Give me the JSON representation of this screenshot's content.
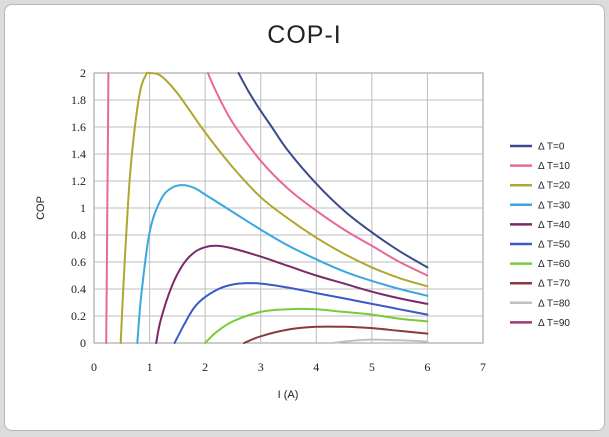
{
  "chart_data": {
    "type": "line",
    "title": "COP-I",
    "xlabel": "I (A)",
    "ylabel": "COP",
    "xlim": [
      0,
      7
    ],
    "ylim": [
      0,
      2
    ],
    "x_ticks": [
      "0",
      "1",
      "2",
      "3",
      "4",
      "5",
      "6",
      "7"
    ],
    "y_ticks": [
      "0",
      "0.2",
      "0.4",
      "0.6",
      "0.8",
      "1",
      "1.2",
      "1.4",
      "1.6",
      "1.8",
      "2"
    ],
    "grid": true,
    "legend_position": "right",
    "series": [
      {
        "name": "Δ T=0",
        "color": "#3a4a8c",
        "x": [
          2.6,
          2.8,
          3.0,
          3.2,
          3.5,
          4.0,
          4.5,
          5.0,
          5.5,
          6.0
        ],
        "y": [
          2.0,
          1.85,
          1.72,
          1.6,
          1.42,
          1.18,
          0.98,
          0.82,
          0.68,
          0.56
        ]
      },
      {
        "name": "Δ T=10",
        "color": "#e8689a",
        "x": [
          0.22,
          0.23,
          0.24,
          0.25,
          0.26
        ],
        "y": [
          0.0,
          0.5,
          1.0,
          1.5,
          2.0
        ]
      },
      {
        "name": "Δ T=10",
        "color": "#e8689a",
        "x": [
          2.05,
          2.2,
          2.5,
          3.0,
          3.5,
          4.0,
          4.5,
          5.0,
          5.5,
          6.0
        ],
        "y": [
          2.0,
          1.86,
          1.63,
          1.35,
          1.14,
          0.98,
          0.84,
          0.72,
          0.6,
          0.5
        ]
      },
      {
        "name": "Δ T=20",
        "color": "#b0a630",
        "x": [
          0.48,
          0.52,
          0.58,
          0.65,
          0.75,
          0.85,
          0.95
        ],
        "y": [
          0.0,
          0.35,
          0.8,
          1.25,
          1.65,
          1.9,
          2.0
        ]
      },
      {
        "name": "Δ T=20",
        "color": "#b0a630",
        "x": [
          0.95,
          1.0,
          1.2,
          1.5,
          2.0,
          2.5,
          3.0,
          3.5,
          4.0,
          4.5,
          5.0,
          5.5,
          6.0
        ],
        "y": [
          2.0,
          2.02,
          1.98,
          1.85,
          1.56,
          1.3,
          1.08,
          0.92,
          0.78,
          0.66,
          0.56,
          0.48,
          0.42
        ]
      },
      {
        "name": "Δ T=30",
        "color": "#3aa8e0",
        "x": [
          0.78,
          0.85,
          1.0,
          1.2,
          1.4,
          1.6,
          1.8,
          2.0,
          2.5,
          3.0,
          3.5,
          4.0,
          4.5,
          5.0,
          5.5,
          6.0
        ],
        "y": [
          0.0,
          0.35,
          0.82,
          1.06,
          1.15,
          1.17,
          1.15,
          1.1,
          0.97,
          0.84,
          0.72,
          0.62,
          0.53,
          0.46,
          0.4,
          0.35
        ]
      },
      {
        "name": "Δ T=40",
        "color": "#7a2a6a",
        "x": [
          1.12,
          1.2,
          1.4,
          1.6,
          1.8,
          2.0,
          2.2,
          2.5,
          3.0,
          3.5,
          4.0,
          4.5,
          5.0,
          5.5,
          6.0
        ],
        "y": [
          0.0,
          0.17,
          0.42,
          0.58,
          0.67,
          0.71,
          0.72,
          0.7,
          0.64,
          0.57,
          0.5,
          0.44,
          0.38,
          0.33,
          0.29
        ]
      },
      {
        "name": "Δ T=50",
        "color": "#3a5ac8",
        "x": [
          1.45,
          1.6,
          1.8,
          2.0,
          2.3,
          2.6,
          3.0,
          3.5,
          4.0,
          4.5,
          5.0,
          5.5,
          6.0
        ],
        "y": [
          0.0,
          0.12,
          0.26,
          0.34,
          0.41,
          0.44,
          0.44,
          0.41,
          0.37,
          0.33,
          0.29,
          0.25,
          0.21
        ]
      },
      {
        "name": "Δ T=60",
        "color": "#78cc38",
        "x": [
          2.0,
          2.2,
          2.5,
          3.0,
          3.5,
          4.0,
          4.5,
          5.0,
          5.5,
          6.0
        ],
        "y": [
          0.0,
          0.08,
          0.16,
          0.23,
          0.25,
          0.25,
          0.23,
          0.21,
          0.18,
          0.16
        ]
      },
      {
        "name": "Δ T=70",
        "color": "#8a3a3a",
        "x": [
          2.7,
          3.0,
          3.5,
          4.0,
          4.5,
          5.0,
          5.5,
          6.0
        ],
        "y": [
          0.0,
          0.05,
          0.1,
          0.12,
          0.12,
          0.11,
          0.09,
          0.07
        ]
      },
      {
        "name": "Δ T=80",
        "color": "#c0c0c0",
        "x": [
          4.3,
          4.6,
          5.0,
          5.5,
          6.0
        ],
        "y": [
          0.0,
          0.015,
          0.025,
          0.02,
          0.01
        ]
      },
      {
        "name": "Δ T=90",
        "color": "#9c3a72",
        "x": [],
        "y": []
      }
    ],
    "legend": [
      {
        "name": "Δ T=0",
        "color": "#3a4a8c"
      },
      {
        "name": "Δ T=10",
        "color": "#e8689a"
      },
      {
        "name": "Δ T=20",
        "color": "#b0a630"
      },
      {
        "name": "Δ T=30",
        "color": "#3aa8e0"
      },
      {
        "name": "Δ T=40",
        "color": "#7a2a6a"
      },
      {
        "name": "Δ T=50",
        "color": "#3a5ac8"
      },
      {
        "name": "Δ T=60",
        "color": "#78cc38"
      },
      {
        "name": "Δ T=70",
        "color": "#8a3a3a"
      },
      {
        "name": "Δ T=80",
        "color": "#c0c0c0"
      },
      {
        "name": "Δ T=90",
        "color": "#9c3a72"
      }
    ]
  }
}
